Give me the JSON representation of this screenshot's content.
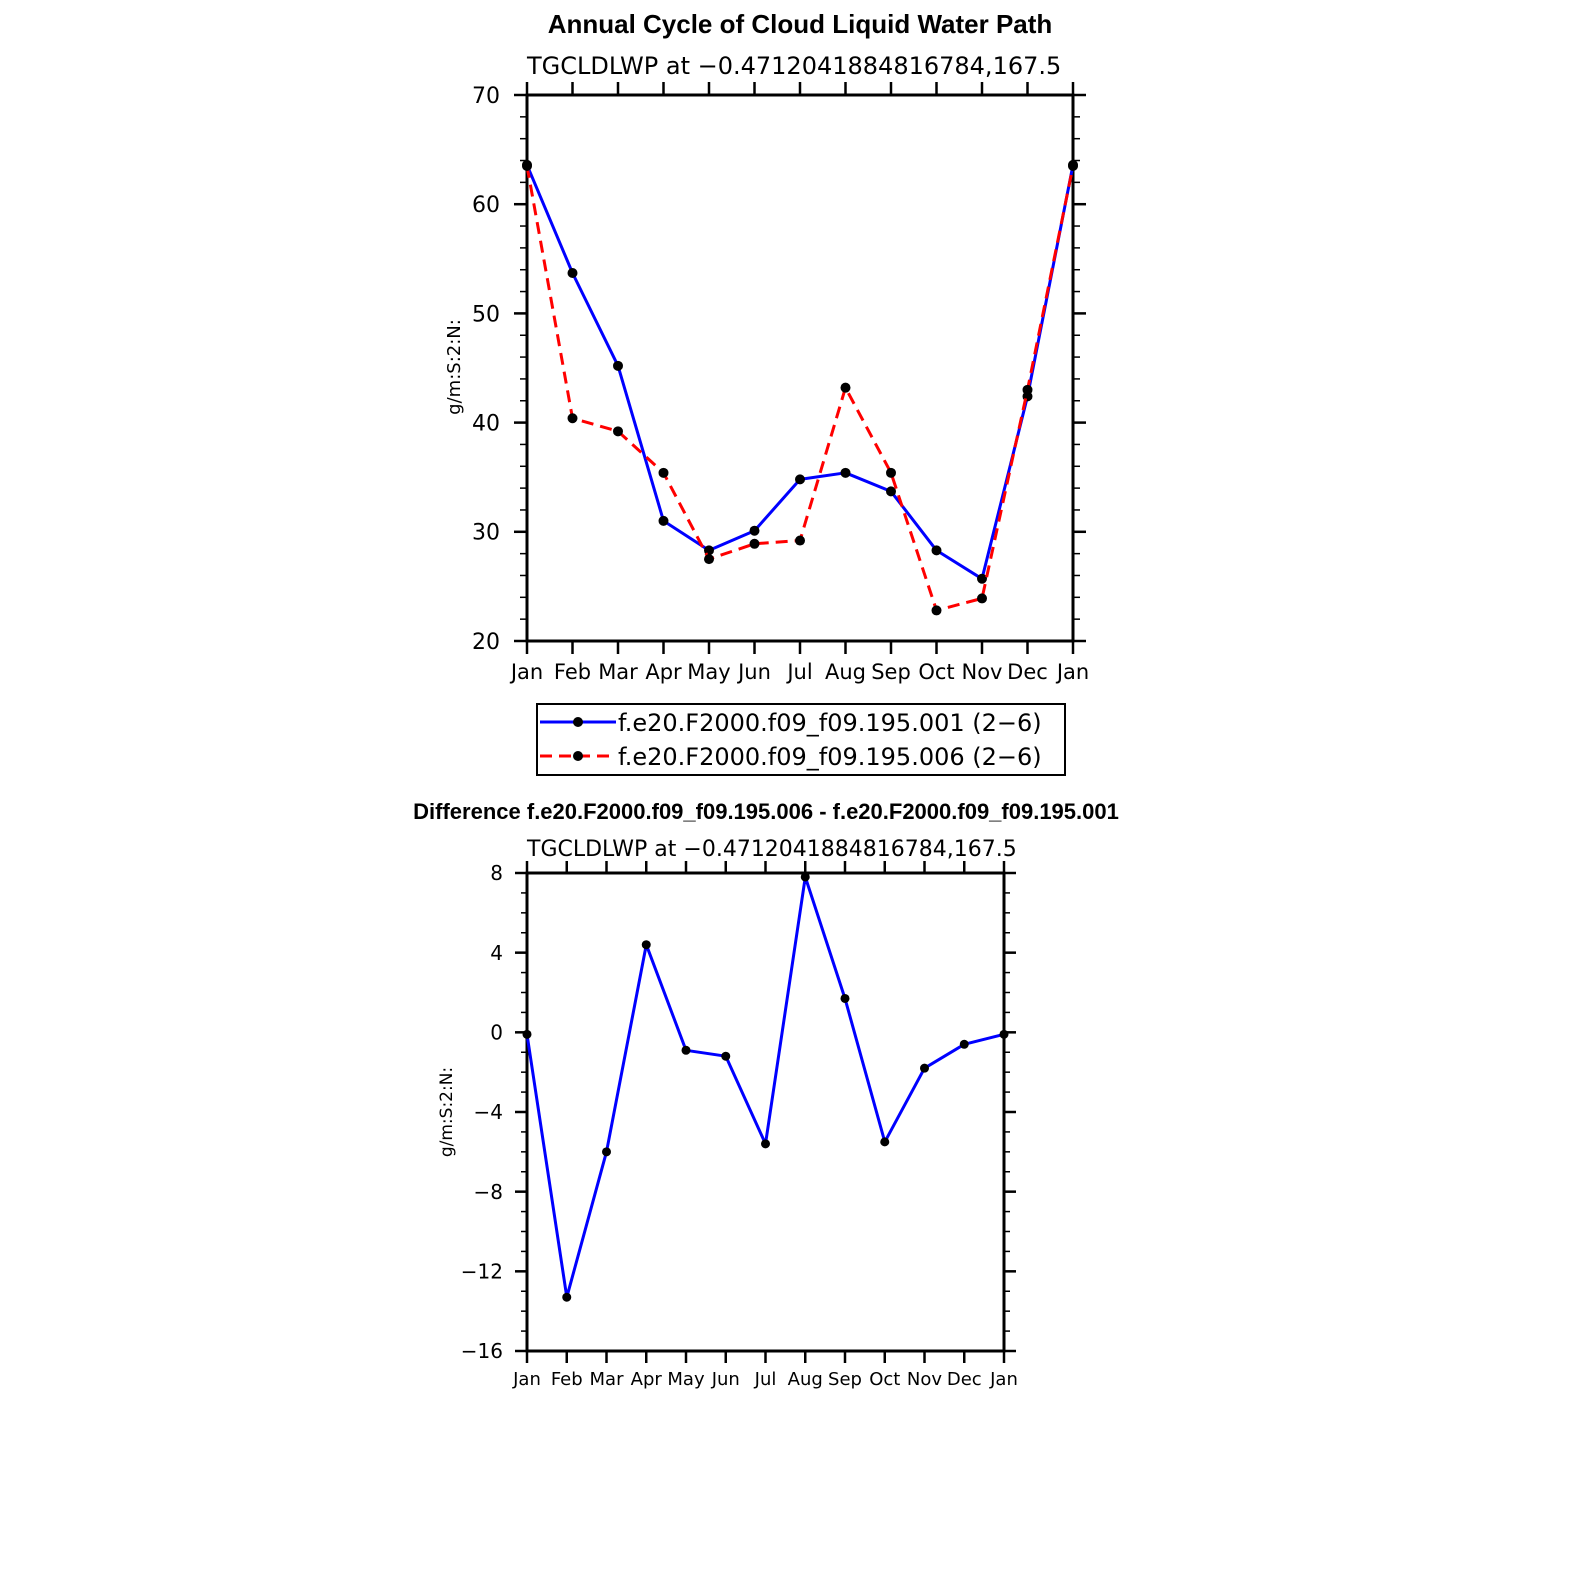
{
  "chart_data": [
    {
      "type": "line",
      "title": "Annual Cycle of Cloud Liquid Water Path",
      "subtitle": "TGCLDLWP at −0.4712041884816784,167.5",
      "ylabel": "g/m:S:2:N:",
      "xlabel": "",
      "categories": [
        "Jan",
        "Feb",
        "Mar",
        "Apr",
        "May",
        "Jun",
        "Jul",
        "Aug",
        "Sep",
        "Oct",
        "Nov",
        "Dec",
        "Jan"
      ],
      "ylim": [
        20,
        70
      ],
      "yticks": [
        20,
        30,
        40,
        50,
        60,
        70
      ],
      "grid": false,
      "legend_position": "bottom",
      "series": [
        {
          "name": "f.e20.F2000.f09_f09.195.001 (2−6)",
          "color": "#0000ff",
          "dash": "solid",
          "values": [
            63.6,
            53.7,
            45.2,
            31.0,
            28.3,
            30.1,
            34.8,
            35.4,
            33.7,
            28.3,
            25.7,
            42.4,
            63.6
          ]
        },
        {
          "name": "f.e20.F2000.f09_f09.195.006 (2−6)",
          "color": "#ff0000",
          "dash": "dashed",
          "values": [
            63.5,
            40.4,
            39.2,
            35.4,
            27.5,
            28.9,
            29.2,
            43.2,
            35.4,
            22.8,
            23.9,
            43.0,
            63.5
          ]
        }
      ]
    },
    {
      "type": "line",
      "title": "Difference f.e20.F2000.f09_f09.195.006 - f.e20.F2000.f09_f09.195.001",
      "subtitle": "TGCLDLWP at −0.4712041884816784,167.5",
      "ylabel": "g/m:S:2:N:",
      "xlabel": "",
      "categories": [
        "Jan",
        "Feb",
        "Mar",
        "Apr",
        "May",
        "Jun",
        "Jul",
        "Aug",
        "Sep",
        "Oct",
        "Nov",
        "Dec",
        "Jan"
      ],
      "ylim": [
        -16,
        8
      ],
      "yticks": [
        -16,
        -12,
        -8,
        -4,
        0,
        4,
        8
      ],
      "ytick_labels": [
        "−16",
        "−12",
        "−8",
        "−4",
        "0",
        "4",
        "8"
      ],
      "grid": false,
      "series": [
        {
          "color": "#0000ff",
          "dash": "solid",
          "values": [
            -0.1,
            -13.3,
            -6.0,
            4.4,
            -0.9,
            -1.2,
            -5.6,
            7.8,
            1.7,
            -5.5,
            -1.8,
            -0.6,
            -0.1
          ]
        }
      ]
    }
  ]
}
